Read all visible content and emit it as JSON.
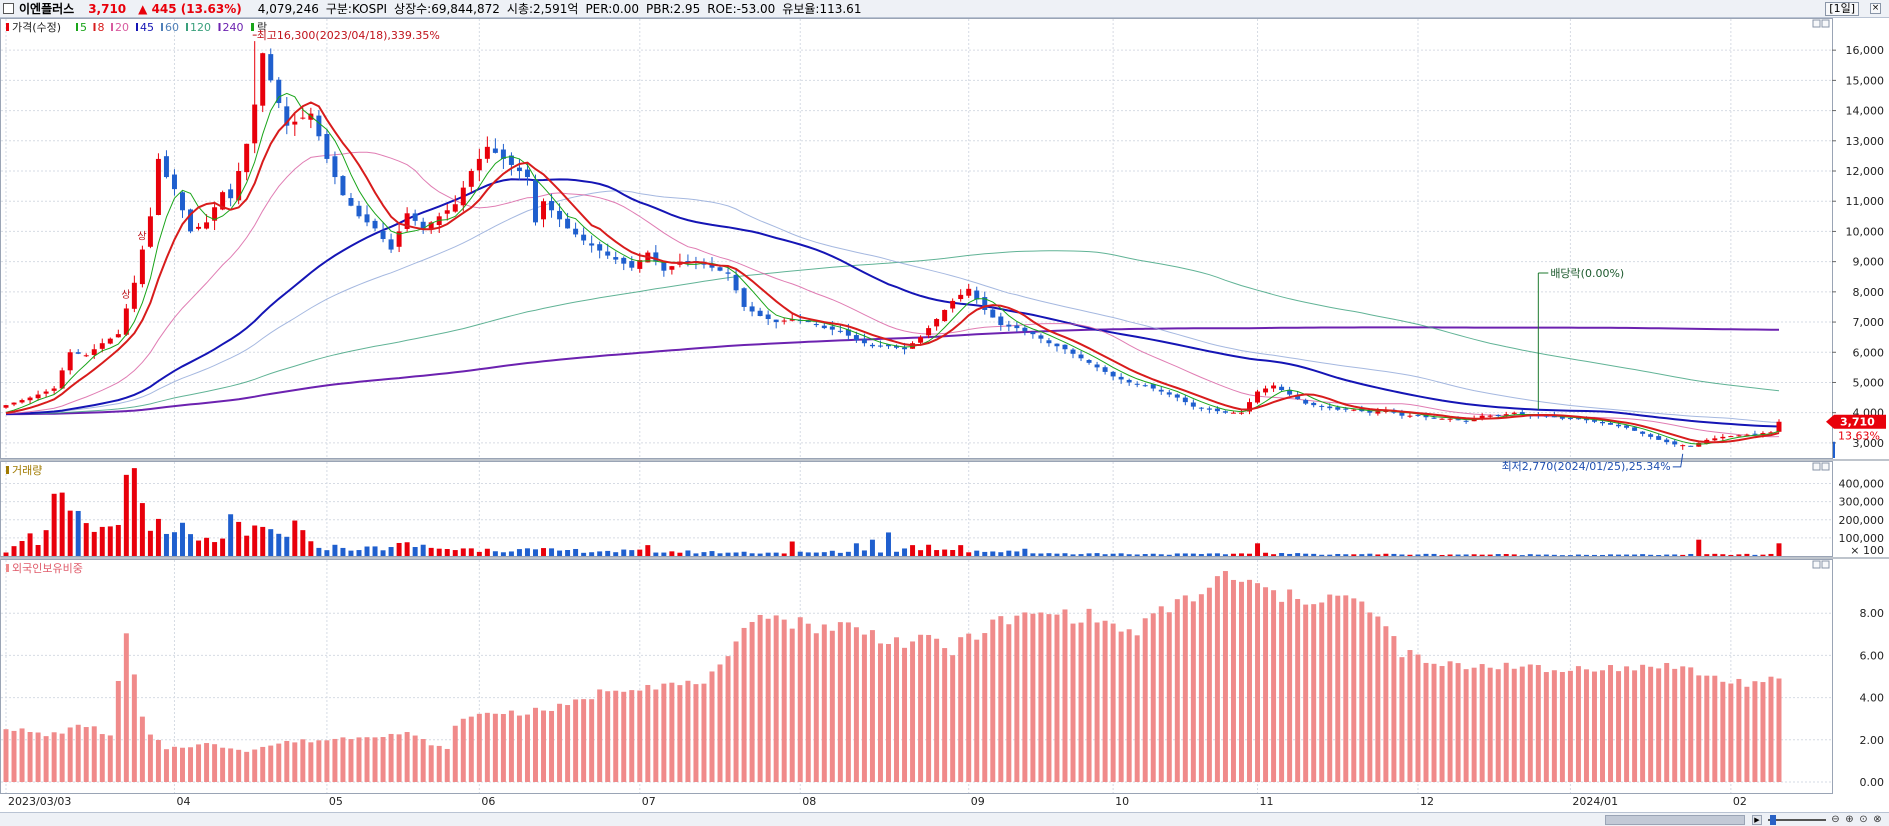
{
  "header": {
    "stock_name": "이엔플러스",
    "price": "3,710",
    "change": "▲ 445 (13.63%)",
    "volume": "4,079,246",
    "market": "구분:KOSPI",
    "shares": "상장수:69,844,872",
    "market_cap": "시총:2,591억",
    "per": "PER:0.00",
    "pbr": "PBR:2.95",
    "roe": "ROE:-53.00",
    "float_ratio": "유보율:113.61",
    "period": "[1일]"
  },
  "colors": {
    "up": "#e8000b",
    "down": "#1f5fce",
    "ma5": "#1aa51a",
    "ma8": "#d81c1c",
    "ma20": "#d85ca0",
    "ma45": "#1515b5",
    "ma60": "#8fa6d8",
    "ma120": "#3aa07c",
    "ma240": "#6c22b0",
    "foreign_bar": "#f08a8a"
  },
  "chart_data": [
    {
      "type": "candlestick",
      "legend": {
        "price_label": "가격(수정)",
        "ma": [
          {
            "label": "5",
            "color": "#1aa51a"
          },
          {
            "label": "8",
            "color": "#d81c1c"
          },
          {
            "label": "20",
            "color": "#d85ca0"
          },
          {
            "label": "45",
            "color": "#1515b5"
          },
          {
            "label": "60",
            "color": "#4f7fb8"
          },
          {
            "label": "120",
            "color": "#3aa07c"
          },
          {
            "label": "240",
            "color": "#6c22b0"
          }
        ],
        "drop_label": "락"
      },
      "y_ticks": [
        "16,000",
        "15,000",
        "14,000",
        "13,000",
        "12,000",
        "11,000",
        "10,000",
        "9,000",
        "8,000",
        "7,000",
        "6,000",
        "5,000",
        "4,000",
        "3,000"
      ],
      "ylim": [
        2500,
        16800
      ],
      "x_labels": [
        "2023/03/03",
        "04",
        "05",
        "06",
        "07",
        "08",
        "09",
        "10",
        "11",
        "12",
        "2024/01",
        "02"
      ],
      "x_label_index": [
        0,
        21,
        40,
        59,
        79,
        99,
        120,
        138,
        156,
        176,
        195,
        215
      ],
      "anchors_close": [
        [
          0,
          4250
        ],
        [
          3,
          4500
        ],
        [
          6,
          4800
        ],
        [
          8,
          6000
        ],
        [
          10,
          5900
        ],
        [
          12,
          6300
        ],
        [
          14,
          6600
        ],
        [
          16,
          8300
        ],
        [
          18,
          10500
        ],
        [
          19,
          12400
        ],
        [
          20,
          11800
        ],
        [
          21,
          11400
        ],
        [
          23,
          10000
        ],
        [
          25,
          10300
        ],
        [
          27,
          11300
        ],
        [
          28,
          11100
        ],
        [
          30,
          12900
        ],
        [
          31,
          14200
        ],
        [
          32,
          15900
        ],
        [
          33,
          15000
        ],
        [
          35,
          13500
        ],
        [
          38,
          13900
        ],
        [
          40,
          12400
        ],
        [
          42,
          11200
        ],
        [
          44,
          10500
        ],
        [
          46,
          10100
        ],
        [
          48,
          9400
        ],
        [
          50,
          10600
        ],
        [
          52,
          10100
        ],
        [
          54,
          10500
        ],
        [
          56,
          10900
        ],
        [
          58,
          12000
        ],
        [
          60,
          12800
        ],
        [
          62,
          12400
        ],
        [
          65,
          11800
        ],
        [
          66,
          10300
        ],
        [
          67,
          11000
        ],
        [
          70,
          10100
        ],
        [
          72,
          9700
        ],
        [
          75,
          9200
        ],
        [
          78,
          8800
        ],
        [
          80,
          9300
        ],
        [
          82,
          8700
        ],
        [
          84,
          9000
        ],
        [
          86,
          9000
        ],
        [
          88,
          8800
        ],
        [
          90,
          8600
        ],
        [
          92,
          7500
        ],
        [
          94,
          7200
        ],
        [
          96,
          7000
        ],
        [
          98,
          7100
        ],
        [
          100,
          7000
        ],
        [
          102,
          6800
        ],
        [
          104,
          6700
        ],
        [
          106,
          6400
        ],
        [
          108,
          6200
        ],
        [
          110,
          6200
        ],
        [
          112,
          6100
        ],
        [
          114,
          6500
        ],
        [
          116,
          7100
        ],
        [
          118,
          7700
        ],
        [
          120,
          8100
        ],
        [
          122,
          7400
        ],
        [
          124,
          6900
        ],
        [
          126,
          6800
        ],
        [
          128,
          6600
        ],
        [
          130,
          6300
        ],
        [
          132,
          6100
        ],
        [
          134,
          5800
        ],
        [
          136,
          5500
        ],
        [
          138,
          5200
        ],
        [
          140,
          5000
        ],
        [
          142,
          4900
        ],
        [
          144,
          4700
        ],
        [
          146,
          4500
        ],
        [
          148,
          4200
        ],
        [
          150,
          4100
        ],
        [
          152,
          4000
        ],
        [
          154,
          4000
        ],
        [
          156,
          4700
        ],
        [
          158,
          4900
        ],
        [
          160,
          4600
        ],
        [
          162,
          4300
        ],
        [
          164,
          4200
        ],
        [
          166,
          4100
        ],
        [
          168,
          4100
        ],
        [
          170,
          4000
        ],
        [
          172,
          4100
        ],
        [
          174,
          3900
        ],
        [
          176,
          3900
        ],
        [
          178,
          3800
        ],
        [
          180,
          3800
        ],
        [
          182,
          3700
        ],
        [
          184,
          3900
        ],
        [
          186,
          3900
        ],
        [
          188,
          4000
        ],
        [
          190,
          3900
        ],
        [
          192,
          3900
        ],
        [
          194,
          3800
        ],
        [
          196,
          3800
        ],
        [
          198,
          3700
        ],
        [
          200,
          3600
        ],
        [
          202,
          3500
        ],
        [
          204,
          3300
        ],
        [
          206,
          3100
        ],
        [
          208,
          2950
        ],
        [
          210,
          2900
        ],
        [
          212,
          3100
        ],
        [
          214,
          3200
        ],
        [
          216,
          3250
        ],
        [
          218,
          3300
        ],
        [
          220,
          3350
        ],
        [
          221,
          3700
        ]
      ],
      "last_close_label": "3,710",
      "last_change_label": "13.63%",
      "annotations": {
        "high": {
          "text": "최고16,300(2023/04/18),339.35%",
          "index": 31,
          "value": 16300
        },
        "low": {
          "text": "최저2,770(2024/01/25),25.34%",
          "index": 209,
          "value": 2770
        },
        "dividend": {
          "text": "배당락(0.00%)",
          "index": 191
        },
        "limit_up": [
          {
            "text": "상",
            "index": 15
          },
          {
            "text": "상",
            "index": 17
          }
        ]
      }
    },
    {
      "type": "bar",
      "title": "거래량",
      "y_ticks": [
        "400,000",
        "300,000",
        "200,000",
        "100,000",
        "× 100"
      ],
      "ylim": [
        0,
        480000
      ],
      "anchors": [
        [
          0,
          30000
        ],
        [
          2,
          120000
        ],
        [
          4,
          80000
        ],
        [
          6,
          300000
        ],
        [
          8,
          220000
        ],
        [
          10,
          140000
        ],
        [
          12,
          120000
        ],
        [
          14,
          200000
        ],
        [
          15,
          390000
        ],
        [
          16,
          470000
        ],
        [
          17,
          300000
        ],
        [
          18,
          220000
        ],
        [
          20,
          90000
        ],
        [
          22,
          150000
        ],
        [
          24,
          70000
        ],
        [
          26,
          90000
        ],
        [
          28,
          170000
        ],
        [
          30,
          100000
        ],
        [
          32,
          150000
        ],
        [
          34,
          110000
        ],
        [
          36,
          160000
        ],
        [
          38,
          60000
        ],
        [
          40,
          50000
        ],
        [
          45,
          40000
        ],
        [
          50,
          60000
        ],
        [
          55,
          40000
        ],
        [
          60,
          35000
        ],
        [
          70,
          30000
        ],
        [
          80,
          25000
        ],
        [
          90,
          20000
        ],
        [
          100,
          18000
        ],
        [
          110,
          30000
        ],
        [
          115,
          50000
        ],
        [
          120,
          30000
        ],
        [
          130,
          15000
        ],
        [
          140,
          12000
        ],
        [
          150,
          10000
        ],
        [
          156,
          15000
        ],
        [
          160,
          12000
        ],
        [
          170,
          10000
        ],
        [
          180,
          9000
        ],
        [
          190,
          8000
        ],
        [
          200,
          7000
        ],
        [
          210,
          8000
        ],
        [
          212,
          9000
        ],
        [
          221,
          8000
        ]
      ],
      "spikes": [
        [
          60,
          40000
        ],
        [
          80,
          60000
        ],
        [
          98,
          80000
        ],
        [
          106,
          70000
        ],
        [
          108,
          90000
        ],
        [
          110,
          130000
        ],
        [
          113,
          60000
        ],
        [
          119,
          60000
        ],
        [
          127,
          40000
        ],
        [
          156,
          70000
        ],
        [
          211,
          90000
        ],
        [
          221,
          70000
        ]
      ]
    },
    {
      "type": "bar",
      "title": "외국인보유비중",
      "y_ticks": [
        "8.00",
        "6.00",
        "4.00",
        "2.00",
        "0.00"
      ],
      "ylim": [
        0,
        10
      ],
      "anchors": [
        [
          0,
          2.6
        ],
        [
          5,
          2.2
        ],
        [
          10,
          2.7
        ],
        [
          13,
          2.2
        ],
        [
          15,
          7.0
        ],
        [
          16,
          5.0
        ],
        [
          17,
          3.0
        ],
        [
          18,
          2.2
        ],
        [
          20,
          1.6
        ],
        [
          25,
          1.8
        ],
        [
          30,
          1.5
        ],
        [
          35,
          1.9
        ],
        [
          40,
          2.0
        ],
        [
          45,
          2.2
        ],
        [
          50,
          2.3
        ],
        [
          55,
          1.5
        ],
        [
          56,
          2.8
        ],
        [
          60,
          3.3
        ],
        [
          65,
          3.3
        ],
        [
          70,
          3.6
        ],
        [
          75,
          4.4
        ],
        [
          80,
          4.6
        ],
        [
          85,
          4.6
        ],
        [
          88,
          5.0
        ],
        [
          90,
          5.7
        ],
        [
          92,
          7.0
        ],
        [
          94,
          8.3
        ],
        [
          96,
          7.8
        ],
        [
          100,
          7.4
        ],
        [
          105,
          7.4
        ],
        [
          108,
          7.0
        ],
        [
          112,
          6.6
        ],
        [
          116,
          6.7
        ],
        [
          118,
          6.2
        ],
        [
          120,
          6.9
        ],
        [
          124,
          7.6
        ],
        [
          130,
          8.0
        ],
        [
          136,
          7.8
        ],
        [
          140,
          7.0
        ],
        [
          146,
          8.5
        ],
        [
          150,
          9.1
        ],
        [
          152,
          9.8
        ],
        [
          156,
          9.2
        ],
        [
          160,
          8.7
        ],
        [
          166,
          8.8
        ],
        [
          170,
          8.2
        ],
        [
          174,
          6.2
        ],
        [
          178,
          5.5
        ],
        [
          182,
          5.5
        ],
        [
          188,
          5.6
        ],
        [
          192,
          5.2
        ],
        [
          198,
          5.5
        ],
        [
          202,
          5.3
        ],
        [
          206,
          5.6
        ],
        [
          210,
          5.3
        ],
        [
          214,
          4.8
        ],
        [
          218,
          4.7
        ],
        [
          221,
          4.8
        ]
      ]
    }
  ]
}
